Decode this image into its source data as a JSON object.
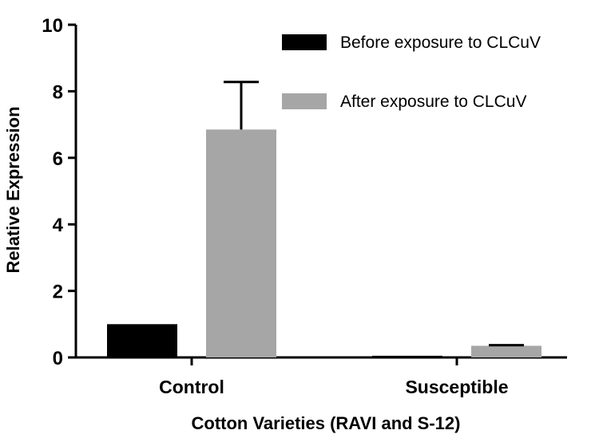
{
  "chart_data": {
    "type": "bar",
    "title": "",
    "xlabel": "Cotton Varieties (RAVI and S-12)",
    "ylabel": "Relative Expression",
    "categories": [
      "Control",
      "Susceptible"
    ],
    "ylim": [
      0,
      10
    ],
    "yticks": [
      "0",
      "2",
      "4",
      "6",
      "8",
      "10"
    ],
    "series": [
      {
        "name": "Before exposure to CLCuV",
        "values": [
          1.0,
          0.05
        ],
        "errors": [
          0,
          0
        ],
        "color": "#000000"
      },
      {
        "name": "After exposure to CLCuV",
        "values": [
          6.85,
          0.35
        ],
        "errors": [
          1.43,
          0.02
        ],
        "color": "#a6a6a6"
      }
    ],
    "grid": false,
    "legend_position": "top-right"
  }
}
